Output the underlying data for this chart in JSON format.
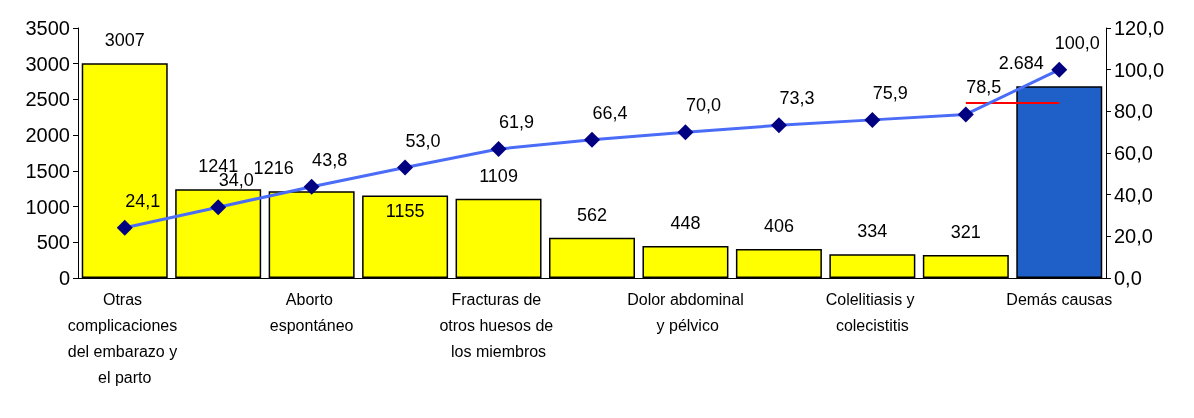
{
  "chart_data": {
    "type": "bar",
    "categories": [
      "Otras complicaciones del embarazo y el parto",
      null,
      "Aborto espontáneo",
      null,
      "Fracturas de otros huesos de los miembros",
      null,
      "Dolor abdominal y pélvico",
      null,
      "Colelitiasis y colecistitis",
      null,
      "Demás causas"
    ],
    "series": [
      {
        "colors": [
          "#ffff00",
          "#ffff00",
          "#ffff00",
          "#ffff00",
          "#ffff00",
          "#ffff00",
          "#ffff00",
          "#ffff00",
          "#ffff00",
          "#ffff00",
          "#1f5fc8"
        ],
        "values": [
          3007,
          1241,
          1216,
          1155,
          1109,
          562,
          448,
          406,
          334,
          321,
          2684
        ],
        "value_labels": [
          "3007",
          "1241",
          "1216",
          "1155",
          "1109",
          "562",
          "448",
          "406",
          "334",
          "321",
          "2.684"
        ]
      },
      {
        "type": "line",
        "axis": "y2",
        "color": "#4a6cf7",
        "marker": "diamond",
        "values": [
          24.1,
          34.0,
          43.8,
          53.0,
          61.9,
          66.4,
          70.0,
          73.3,
          75.9,
          78.5,
          100.0
        ],
        "value_labels": [
          "24,1",
          "34,0",
          "43,8",
          "53,0",
          "61,9",
          "66,4",
          "70,0",
          "73,3",
          "75,9",
          "78,5",
          "100,0"
        ]
      }
    ],
    "ylim": [
      0,
      3500
    ],
    "yticks": [
      0,
      500,
      1000,
      1500,
      2000,
      2500,
      3000,
      3500
    ],
    "y2lim": [
      0,
      120
    ],
    "y2ticks": [
      {
        "value": 0,
        "label": "0,0"
      },
      {
        "value": 20,
        "label": "20,0"
      },
      {
        "value": 40,
        "label": "40,0"
      },
      {
        "value": 60,
        "label": "60,0"
      },
      {
        "value": 80,
        "label": "80,0"
      },
      {
        "value": 100,
        "label": "100,0"
      },
      {
        "value": 120,
        "label": "120,0"
      }
    ],
    "ref_lines": [
      {
        "axis": "y2",
        "value": 84,
        "color": "#ff0000"
      }
    ],
    "grid": false
  }
}
